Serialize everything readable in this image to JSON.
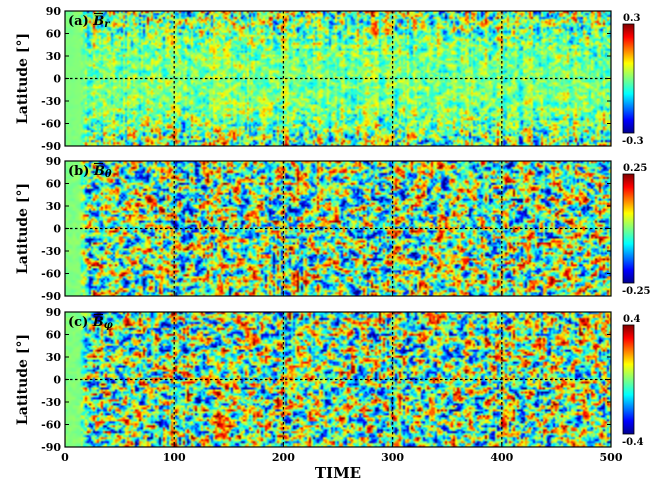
{
  "chart_data": {
    "type": "heatmap",
    "xlabel": "TIME",
    "x_ticks": [
      "0",
      "100",
      "200",
      "300",
      "400",
      "500"
    ],
    "xlim": [
      0,
      500
    ],
    "grid": "dashed black lines at x = 100, 200, 300, 400 and latitude 0",
    "panels": [
      {
        "title_prefix": "(a)",
        "title_symbol": "B",
        "title_sub": "r",
        "ylabel": "Latitude [°]",
        "y_ticks": [
          "90",
          "60",
          "30",
          "0",
          "-30",
          "-60",
          "-90"
        ],
        "ylim": [
          -90,
          90
        ],
        "colorbar_max": "0.3",
        "colorbar_min": "-0.3",
        "vmin": -0.3,
        "vmax": 0.3
      },
      {
        "title_prefix": "(b)",
        "title_symbol": "B",
        "title_sub": "θ",
        "ylabel": "Latitude [°]",
        "y_ticks": [
          "90",
          "60",
          "30",
          "0",
          "-30",
          "-60",
          "-90"
        ],
        "ylim": [
          -90,
          90
        ],
        "colorbar_max": "0.25",
        "colorbar_min": "-0.25",
        "vmin": -0.25,
        "vmax": 0.25
      },
      {
        "title_prefix": "(c)",
        "title_symbol": "B",
        "title_sub": "φ",
        "ylabel": "Latitude [°]",
        "y_ticks": [
          "90",
          "60",
          "30",
          "0",
          "-30",
          "-60",
          "-90"
        ],
        "ylim": [
          -90,
          90
        ],
        "colorbar_max": "0.4",
        "colorbar_min": "-0.4",
        "vmin": -0.4,
        "vmax": 0.4
      }
    ],
    "colormap": "jet"
  }
}
